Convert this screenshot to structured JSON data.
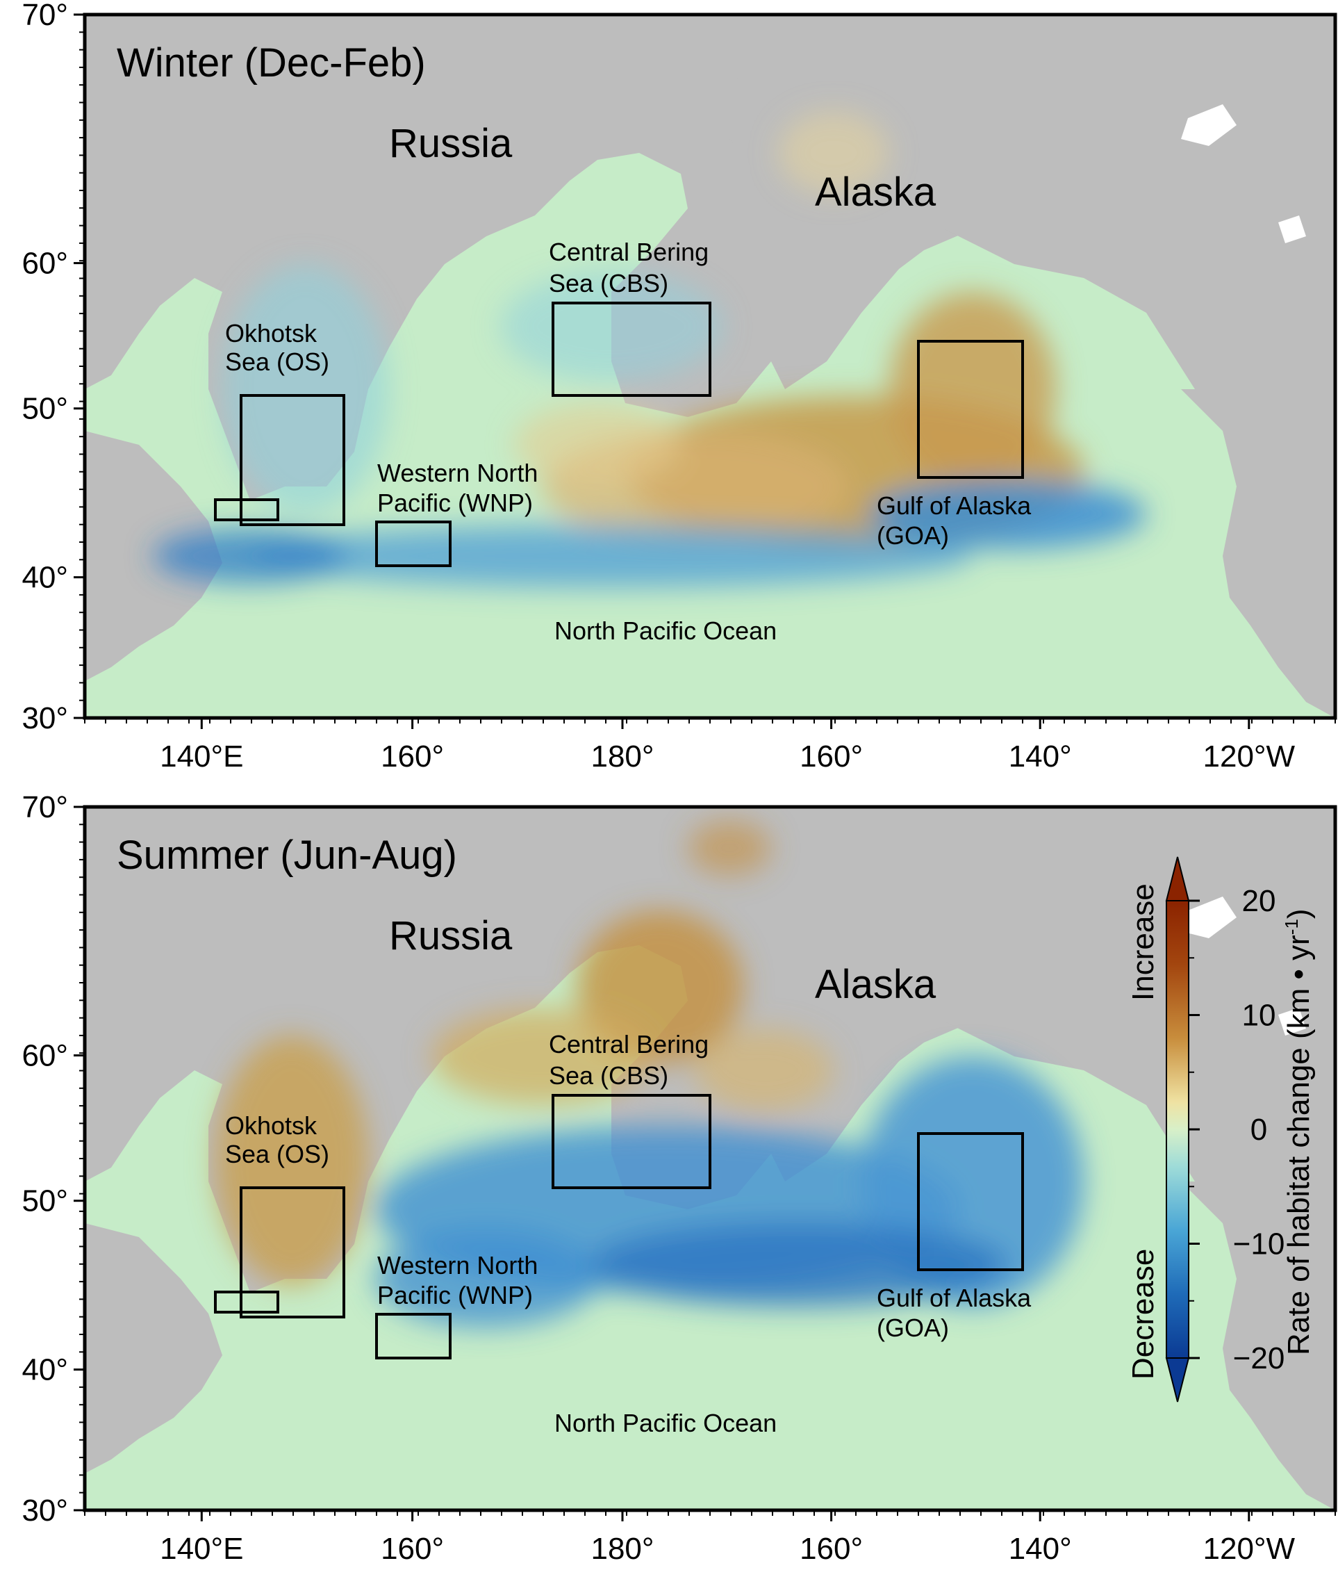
{
  "panels": [
    {
      "title": "Winter (Dec-Feb)",
      "labels": {
        "russia": "Russia",
        "alaska": "Alaska",
        "ocean": "North Pacific Ocean",
        "cbs_line1": "Central Bering",
        "cbs_line2": "Sea (CBS)",
        "os_line1": "Okhotsk",
        "os_line2": "Sea (OS)",
        "wnp_line1": "Western North",
        "wnp_line2": "Pacific (WNP)",
        "goa_line1": "Gulf of Alaska",
        "goa_line2": "(GOA)"
      }
    },
    {
      "title": "Summer (Jun-Aug)",
      "labels": {
        "russia": "Russia",
        "alaska": "Alaska",
        "ocean": "North Pacific Ocean",
        "cbs_line1": "Central Bering",
        "cbs_line2": "Sea (CBS)",
        "os_line1": "Okhotsk",
        "os_line2": "Sea (OS)",
        "wnp_line1": "Western North",
        "wnp_line2": "Pacific (WNP)",
        "goa_line1": "Gulf of Alaska",
        "goa_line2": "(GOA)"
      }
    }
  ],
  "axes": {
    "lat_ticks": [
      "70°",
      "60°",
      "50°",
      "40°",
      "30°"
    ],
    "lon_ticks": [
      "140°E",
      "160°",
      "180°",
      "160°",
      "140°",
      "120°W"
    ]
  },
  "colorbar": {
    "title": "Rate of habitat change (km • yr",
    "title_sup": "-1",
    "title_close": ")",
    "increase_label": "Increase",
    "decrease_label": "Decrease",
    "ticks": [
      "20",
      "10",
      "0",
      "−10",
      "−20"
    ],
    "colors": [
      "#8b2300",
      "#b5651d",
      "#d9b36a",
      "#f1ecb0",
      "#c4ead0",
      "#6cc0d8",
      "#2a7fc2",
      "#0b3c96"
    ]
  },
  "colors": {
    "land": "#bdbdbd",
    "ocean_neutral": "#c6ecc8",
    "increase": "#c79a4b",
    "decrease": "#3f8fd0"
  }
}
